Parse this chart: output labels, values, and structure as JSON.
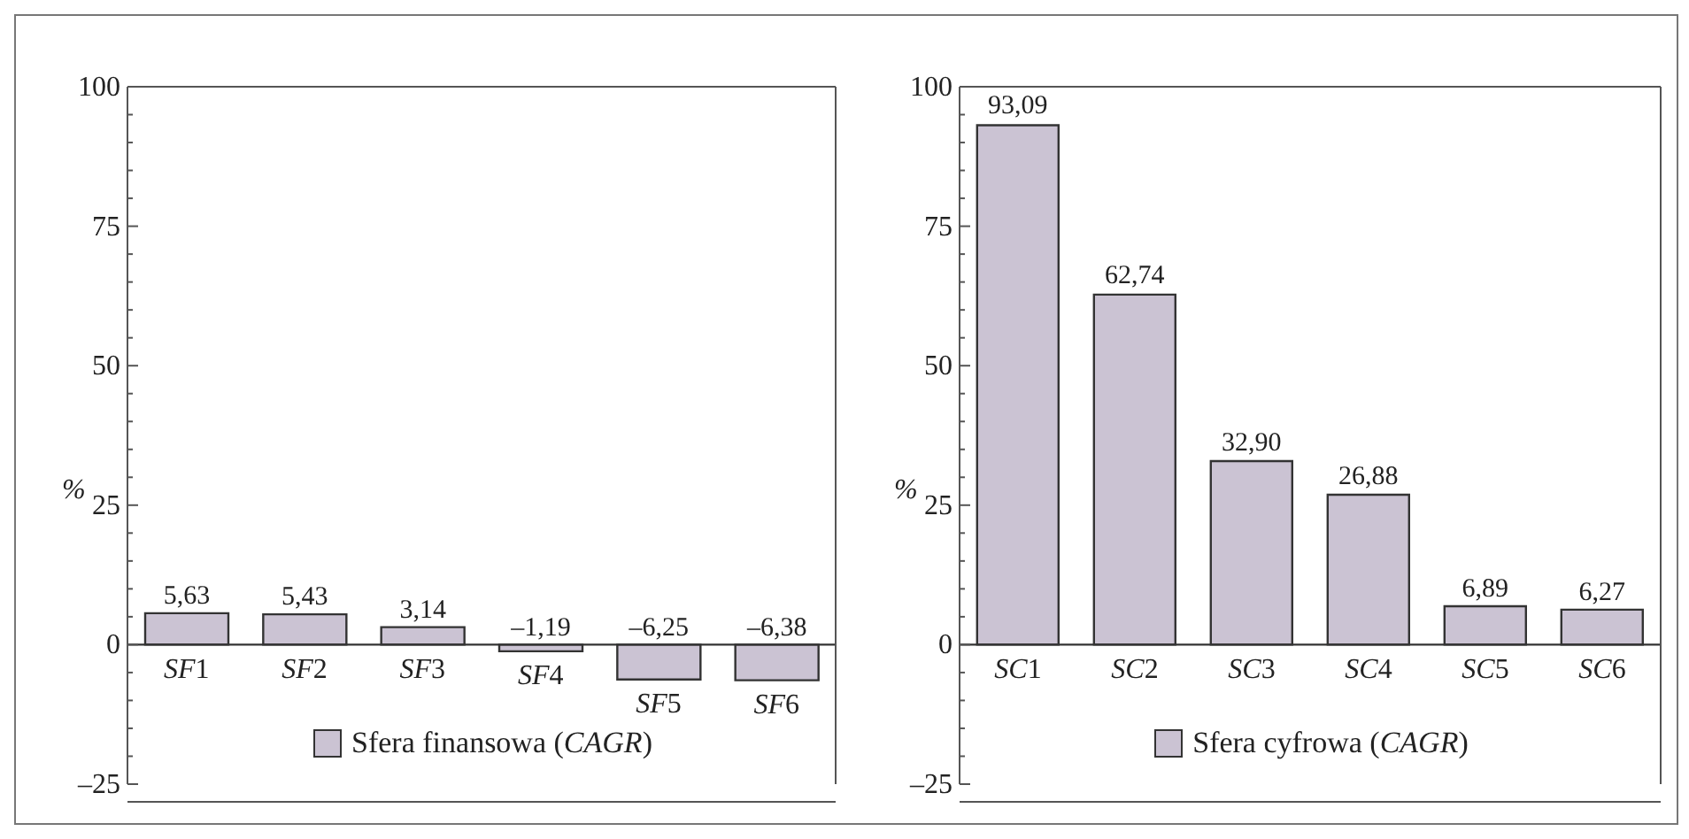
{
  "chart_data": [
    {
      "type": "bar",
      "categories": [
        "SF1",
        "SF2",
        "SF3",
        "SF4",
        "SF5",
        "SF6"
      ],
      "ylabel": "%",
      "legend": "bottom",
      "series": [
        {
          "name": "Sfera finansowa (CAGR)",
          "color": "#cbc3d3",
          "values": [
            5.63,
            5.43,
            3.14,
            -1.19,
            -6.25,
            -6.38
          ],
          "value_labels": [
            "5,63",
            "5,43",
            "3,14",
            "–1,19",
            "–6,25",
            "–6,38"
          ]
        }
      ],
      "ylim": [
        -25,
        100
      ],
      "yticks": [
        {
          "value": -25,
          "label": "–25"
        },
        {
          "value": -20,
          "label": null
        },
        {
          "value": -15,
          "label": null
        },
        {
          "value": -10,
          "label": null
        },
        {
          "value": -5,
          "label": null
        },
        0,
        {
          "value": 5,
          "label": null
        },
        {
          "value": 10,
          "label": null
        },
        {
          "value": 15,
          "label": null
        },
        {
          "value": 20,
          "label": null
        },
        25,
        {
          "value": 30,
          "label": null
        },
        {
          "value": 35,
          "label": null
        },
        {
          "value": 40,
          "label": null
        },
        {
          "value": 45,
          "label": null
        },
        50,
        {
          "value": 55,
          "label": null
        },
        {
          "value": 60,
          "label": null
        },
        {
          "value": 65,
          "label": null
        },
        {
          "value": 70,
          "label": null
        },
        75,
        {
          "value": 80,
          "label": null
        },
        {
          "value": 85,
          "label": null
        },
        {
          "value": 90,
          "label": null
        },
        {
          "value": 95,
          "label": null
        },
        100
      ]
    },
    {
      "type": "bar",
      "categories": [
        "SC1",
        "SC2",
        "SC3",
        "SC4",
        "SC5",
        "SC6"
      ],
      "ylabel": "%",
      "legend": "bottom",
      "series": [
        {
          "name": "Sfera cyfrowa (CAGR)",
          "color": "#cbc3d3",
          "values": [
            93.09,
            62.74,
            32.9,
            26.88,
            6.89,
            6.27
          ],
          "value_labels": [
            "93,09",
            "62,74",
            "32,90",
            "26,88",
            "6,89",
            "6,27"
          ]
        }
      ],
      "ylim": [
        -25,
        100
      ],
      "yticks": [
        {
          "value": -25,
          "label": "–25"
        },
        {
          "value": -20,
          "label": null
        },
        {
          "value": -15,
          "label": null
        },
        {
          "value": -10,
          "label": null
        },
        {
          "value": -5,
          "label": null
        },
        0,
        {
          "value": 5,
          "label": null
        },
        {
          "value": 10,
          "label": null
        },
        {
          "value": 15,
          "label": null
        },
        {
          "value": 20,
          "label": null
        },
        25,
        {
          "value": 30,
          "label": null
        },
        {
          "value": 35,
          "label": null
        },
        {
          "value": 40,
          "label": null
        },
        {
          "value": 45,
          "label": null
        },
        50,
        {
          "value": 55,
          "label": null
        },
        {
          "value": 60,
          "label": null
        },
        {
          "value": 65,
          "label": null
        },
        {
          "value": 70,
          "label": null
        },
        75,
        {
          "value": 80,
          "label": null
        },
        {
          "value": 85,
          "label": null
        },
        {
          "value": 90,
          "label": null
        },
        {
          "value": 95,
          "label": null
        },
        100
      ]
    }
  ]
}
